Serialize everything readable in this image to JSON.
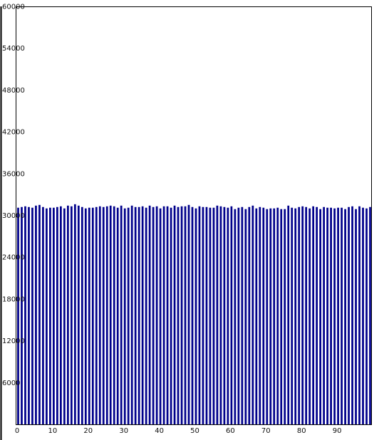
{
  "chart_data": {
    "type": "bar",
    "title": "",
    "xlabel": "",
    "ylabel": "",
    "xlim": [
      0,
      100
    ],
    "ylim": [
      0,
      60000
    ],
    "yticks": [
      6000,
      12000,
      18000,
      24000,
      30000,
      36000,
      42000,
      48000,
      54000,
      60000
    ],
    "ytick_labels": [
      "6000",
      "12000",
      "18000",
      "24000",
      "30000",
      "36000",
      "42000",
      "48000",
      "54000",
      "60000"
    ],
    "xticks": [
      0,
      10,
      20,
      30,
      40,
      50,
      60,
      70,
      80,
      90
    ],
    "xtick_labels": [
      "0",
      "10",
      "20",
      "30",
      "40",
      "50",
      "60",
      "70",
      "80",
      "90"
    ],
    "bar_color": "#00008b",
    "grid": false,
    "legend": "none",
    "categories": [
      0,
      1,
      2,
      3,
      4,
      5,
      6,
      7,
      8,
      9,
      10,
      11,
      12,
      13,
      14,
      15,
      16,
      17,
      18,
      19,
      20,
      21,
      22,
      23,
      24,
      25,
      26,
      27,
      28,
      29,
      30,
      31,
      32,
      33,
      34,
      35,
      36,
      37,
      38,
      39,
      40,
      41,
      42,
      43,
      44,
      45,
      46,
      47,
      48,
      49,
      50,
      51,
      52,
      53,
      54,
      55,
      56,
      57,
      58,
      59,
      60,
      61,
      62,
      63,
      64,
      65,
      66,
      67,
      68,
      69,
      70,
      71,
      72,
      73,
      74,
      75,
      76,
      77,
      78,
      79,
      80,
      81,
      82,
      83,
      84,
      85,
      86,
      87,
      88,
      89,
      90,
      91,
      92,
      93,
      94,
      95,
      96,
      97,
      98,
      99
    ],
    "values": [
      31100,
      31200,
      31300,
      31200,
      31100,
      31400,
      31500,
      31200,
      31000,
      31100,
      31100,
      31200,
      31300,
      31000,
      31400,
      31300,
      31600,
      31400,
      31200,
      31000,
      31100,
      31100,
      31200,
      31300,
      31200,
      31300,
      31400,
      31300,
      31100,
      31400,
      31000,
      31100,
      31400,
      31200,
      31200,
      31300,
      31100,
      31400,
      31200,
      31300,
      31000,
      31300,
      31300,
      31100,
      31400,
      31200,
      31300,
      31300,
      31500,
      31200,
      31000,
      31300,
      31200,
      31200,
      31100,
      31100,
      31400,
      31300,
      31200,
      31100,
      31300,
      30900,
      31100,
      31200,
      30900,
      31200,
      31400,
      31000,
      31200,
      31100,
      30900,
      31000,
      31000,
      31100,
      30900,
      30900,
      31400,
      31100,
      31000,
      31200,
      31300,
      31200,
      31000,
      31300,
      31200,
      30900,
      31200,
      31100,
      31100,
      31000,
      31100,
      31100,
      30900,
      31200,
      31300,
      30900,
      31300,
      31100,
      31000,
      31200
    ]
  }
}
